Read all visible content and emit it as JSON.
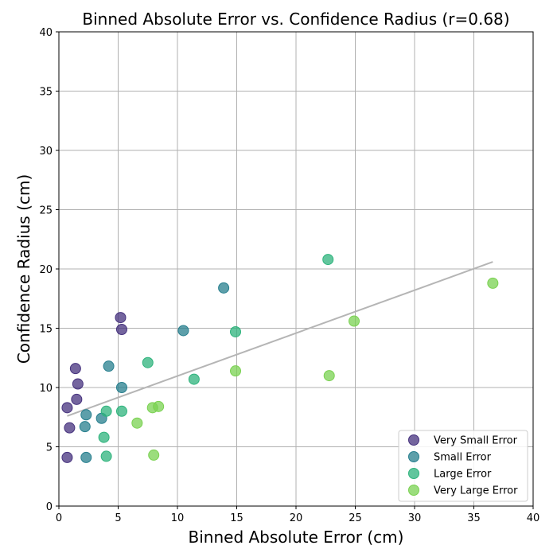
{
  "chart_data": {
    "type": "scatter",
    "title": "Binned Absolute Error vs. Confidence Radius (r=0.68)",
    "xlabel": "Binned Absolute Error (cm)",
    "ylabel": "Confidence Radius (cm)",
    "xlim": [
      0,
      40
    ],
    "ylim": [
      0,
      40
    ],
    "xticks": [
      0,
      5,
      10,
      15,
      20,
      25,
      30,
      35,
      40
    ],
    "yticks": [
      0,
      5,
      10,
      15,
      20,
      25,
      30,
      35,
      40
    ],
    "grid": true,
    "legend_position": "bottom-right",
    "series": [
      {
        "name": "Very Small Error",
        "color": "#46327e",
        "points": [
          [
            0.7,
            4.1
          ],
          [
            0.9,
            6.6
          ],
          [
            0.7,
            8.3
          ],
          [
            1.5,
            9.0
          ],
          [
            1.6,
            10.3
          ],
          [
            1.4,
            11.6
          ],
          [
            5.2,
            15.9
          ],
          [
            5.3,
            14.9
          ]
        ]
      },
      {
        "name": "Small Error",
        "color": "#277f8e",
        "points": [
          [
            2.3,
            4.1
          ],
          [
            2.2,
            6.7
          ],
          [
            2.3,
            7.7
          ],
          [
            3.6,
            7.4
          ],
          [
            5.3,
            10.0
          ],
          [
            4.2,
            11.8
          ],
          [
            10.5,
            14.8
          ],
          [
            13.9,
            18.4
          ]
        ]
      },
      {
        "name": "Large Error",
        "color": "#2eb37c",
        "points": [
          [
            4.0,
            4.2
          ],
          [
            3.8,
            5.8
          ],
          [
            4.0,
            8.0
          ],
          [
            5.3,
            8.0
          ],
          [
            7.5,
            12.1
          ],
          [
            11.4,
            10.7
          ],
          [
            14.9,
            14.7
          ],
          [
            22.7,
            20.8
          ]
        ]
      },
      {
        "name": "Very Large Error",
        "color": "#7ad151",
        "points": [
          [
            8.0,
            4.3
          ],
          [
            6.6,
            7.0
          ],
          [
            7.9,
            8.3
          ],
          [
            8.4,
            8.4
          ],
          [
            14.9,
            11.4
          ],
          [
            22.8,
            11.0
          ],
          [
            24.9,
            15.6
          ],
          [
            36.6,
            18.8
          ]
        ]
      }
    ],
    "trendline": {
      "color": "#b5b5b5",
      "x": [
        0.7,
        36.6
      ],
      "y": [
        7.6,
        20.6
      ]
    }
  }
}
